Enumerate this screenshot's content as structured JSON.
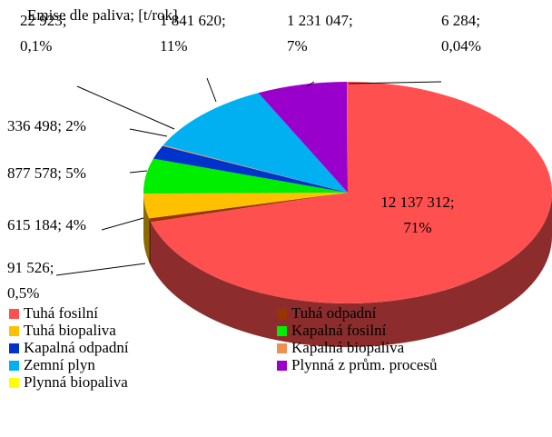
{
  "chart_data": {
    "type": "pie3d",
    "title": "Emise dle paliva; [t/rok]",
    "categories": [
      "Tuhá fosilní",
      "Tuhá odpadní",
      "Tuhá biopaliva",
      "Kapalná fosilní",
      "Kapalná odpadní",
      "Kapalná biopaliva",
      "Zemní plyn",
      "Plynná z prům. procesů",
      "Plynná biopaliva"
    ],
    "values": [
      12137312,
      91526,
      615184,
      877578,
      336498,
      22923,
      1841620,
      1231047,
      6284
    ],
    "value_labels": [
      "12 137 312;\n71%",
      "91 526;\n0,5%",
      "615 184; 4%",
      "877 578; 5%",
      "336 498; 2%",
      "22 923;\n0,1%",
      "1 841 620;\n11%",
      "1 231 047;\n7%",
      "6 284;\n0,04%"
    ],
    "colors": [
      "#ff5050",
      "#993300",
      "#ffc000",
      "#00ee00",
      "#0033cc",
      "#f09050",
      "#00b0f0",
      "#9900cc",
      "#ffff00"
    ],
    "legend": "bottom"
  }
}
